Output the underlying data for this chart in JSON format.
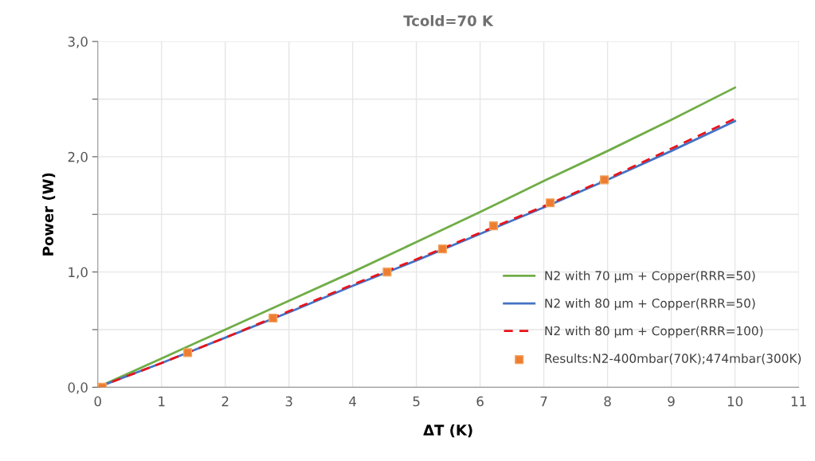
{
  "chart_data": {
    "type": "line",
    "title": "Tcold=70 K",
    "xlabel": "ΔT (K)",
    "ylabel": "Power (W)",
    "xlim": [
      0,
      11
    ],
    "xticks": [
      0,
      1,
      2,
      3,
      4,
      5,
      6,
      7,
      8,
      9,
      10,
      11
    ],
    "ylim": [
      0,
      3
    ],
    "yticks": [
      {
        "value": 0,
        "label": "0,0"
      },
      {
        "value": 0.5,
        "label": null
      },
      {
        "value": 1,
        "label": "1,0"
      },
      {
        "value": 1.5,
        "label": null
      },
      {
        "value": 2,
        "label": "2,0"
      },
      {
        "value": 2.5,
        "label": null
      },
      {
        "value": 3,
        "label": "3,0"
      }
    ],
    "grid": true,
    "legend": "right",
    "marker": "none",
    "series": [
      {
        "name": "N2 with 70 µm + Copper(RRR=50)",
        "color": "#70ad47",
        "x": [
          0,
          1,
          2,
          3,
          4,
          5,
          6,
          7,
          8,
          9,
          10
        ],
        "values": [
          0,
          0.25,
          0.5,
          0.75,
          1.0,
          1.26,
          1.52,
          1.79,
          2.05,
          2.32,
          2.6
        ]
      },
      {
        "name": "N2 with 80 µm + Copper(RRR=50)",
        "color": "#4472c4",
        "x": [
          0,
          1,
          2,
          3,
          4,
          5,
          6,
          7,
          8,
          9,
          10
        ],
        "values": [
          0,
          0.21,
          0.43,
          0.65,
          0.88,
          1.1,
          1.33,
          1.56,
          1.8,
          2.05,
          2.31
        ]
      },
      {
        "name": "N2 with 80 µm + Copper(RRR=100)",
        "color": "#e8141b",
        "line_style": "dashed",
        "x": [
          0,
          1,
          2,
          3,
          4,
          5,
          6,
          7,
          8,
          9,
          10
        ],
        "values": [
          0,
          0.21,
          0.43,
          0.66,
          0.89,
          1.11,
          1.34,
          1.57,
          1.81,
          2.07,
          2.33
        ]
      },
      {
        "name": "Results:N2-400mbar(70K);474mbar(300K)",
        "type": "scatter",
        "marker": "square",
        "color": "#ed7d31",
        "x": [
          0.07,
          1.41,
          2.75,
          4.54,
          5.41,
          6.21,
          7.1,
          7.95
        ],
        "values": [
          0,
          0.3,
          0.6,
          1.0,
          1.2,
          1.4,
          1.6,
          1.8
        ]
      }
    ]
  }
}
